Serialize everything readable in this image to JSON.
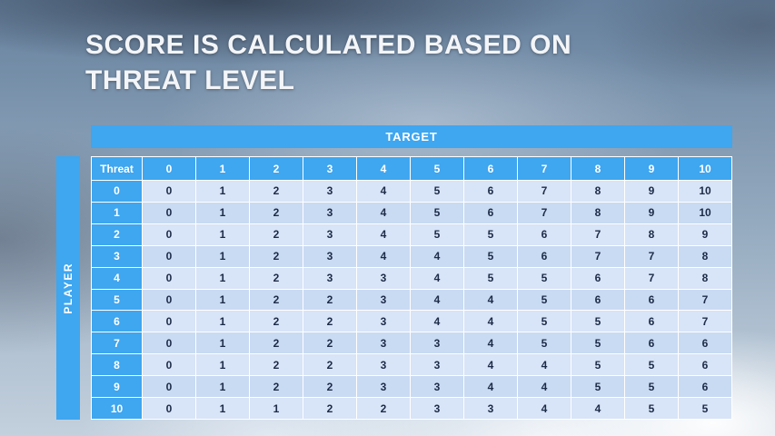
{
  "slide": {
    "title_line1": "SCORE IS CALCULATED BASED ON",
    "title_line2": "THREAT LEVEL"
  },
  "table": {
    "target_label": "TARGET",
    "player_label": "PLAYER",
    "corner_label": "Threat",
    "column_headers": [
      "0",
      "1",
      "2",
      "3",
      "4",
      "5",
      "6",
      "7",
      "8",
      "9",
      "10"
    ],
    "rows": [
      {
        "label": "0",
        "values": [
          0,
          1,
          2,
          3,
          4,
          5,
          6,
          7,
          8,
          9,
          10
        ]
      },
      {
        "label": "1",
        "values": [
          0,
          1,
          2,
          3,
          4,
          5,
          6,
          7,
          8,
          9,
          10
        ]
      },
      {
        "label": "2",
        "values": [
          0,
          1,
          2,
          3,
          4,
          5,
          5,
          6,
          7,
          8,
          9
        ]
      },
      {
        "label": "3",
        "values": [
          0,
          1,
          2,
          3,
          4,
          4,
          5,
          6,
          7,
          7,
          8
        ]
      },
      {
        "label": "4",
        "values": [
          0,
          1,
          2,
          3,
          3,
          4,
          5,
          5,
          6,
          7,
          8
        ]
      },
      {
        "label": "5",
        "values": [
          0,
          1,
          2,
          2,
          3,
          4,
          4,
          5,
          6,
          6,
          7
        ]
      },
      {
        "label": "6",
        "values": [
          0,
          1,
          2,
          2,
          3,
          4,
          4,
          5,
          5,
          6,
          7
        ]
      },
      {
        "label": "7",
        "values": [
          0,
          1,
          2,
          2,
          3,
          3,
          4,
          5,
          5,
          6,
          6
        ]
      },
      {
        "label": "8",
        "values": [
          0,
          1,
          2,
          2,
          3,
          3,
          4,
          4,
          5,
          5,
          6
        ]
      },
      {
        "label": "9",
        "values": [
          0,
          1,
          2,
          2,
          3,
          3,
          4,
          4,
          5,
          5,
          6
        ]
      },
      {
        "label": "10",
        "values": [
          0,
          1,
          1,
          2,
          2,
          3,
          3,
          4,
          4,
          5,
          5
        ]
      }
    ]
  },
  "colors": {
    "accent_blue": "#3fa6f0",
    "cell_light": "#d8e4f7",
    "cell_dark": "#c9daf3",
    "cell_text": "#1c2b47"
  }
}
